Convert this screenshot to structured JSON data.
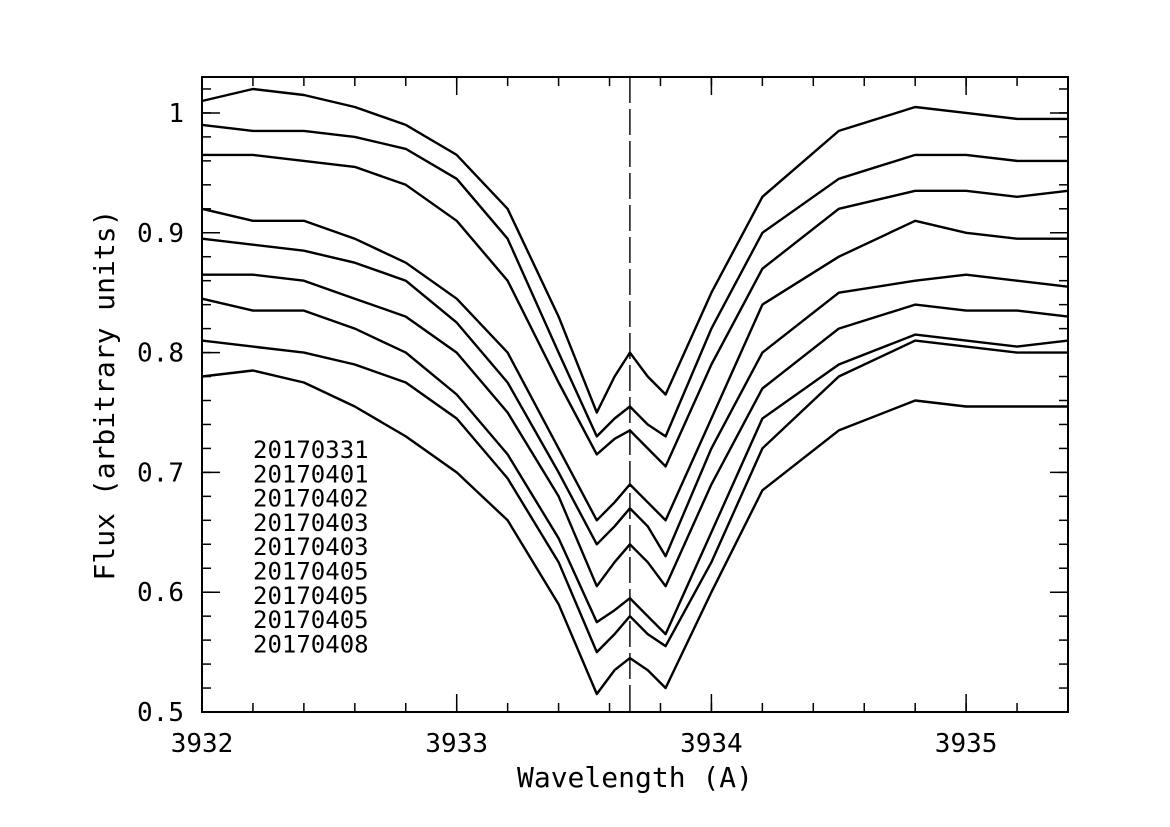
{
  "chart_data": {
    "type": "line",
    "xlabel": "Wavelength (A)",
    "ylabel": "Flux (arbitrary units)",
    "xlim": [
      3932.0,
      3935.4
    ],
    "ylim": [
      0.5,
      1.03
    ],
    "x_ticks": [
      3932,
      3933,
      3934,
      3935
    ],
    "x_tick_labels": [
      "3932",
      "3933",
      "3934",
      "3935"
    ],
    "y_ticks": [
      0.5,
      0.6,
      0.7,
      0.8,
      0.9,
      1.0
    ],
    "y_tick_labels": [
      "0.5",
      "0.6",
      "0.7",
      "0.8",
      "0.9",
      "1"
    ],
    "x_minor_step": 0.2,
    "y_minor_step": 0.02,
    "reference_line_x": 3933.68,
    "legend_entries": [
      "20170331",
      "20170401",
      "20170402",
      "20170403",
      "20170403",
      "20170405",
      "20170405",
      "20170405",
      "20170408"
    ],
    "legend_position": "lower-left",
    "series": [
      {
        "x": [
          3932.0,
          3932.2,
          3932.4,
          3932.6,
          3932.8,
          3933.0,
          3933.2,
          3933.4,
          3933.55,
          3933.62,
          3933.68,
          3933.75,
          3933.82,
          3934.0,
          3934.2,
          3934.5,
          3934.8,
          3935.0,
          3935.2,
          3935.4
        ],
        "y": [
          1.01,
          1.02,
          1.015,
          1.005,
          0.99,
          0.965,
          0.92,
          0.83,
          0.75,
          0.78,
          0.8,
          0.78,
          0.765,
          0.85,
          0.93,
          0.985,
          1.005,
          1.0,
          0.995,
          0.995
        ]
      },
      {
        "x": [
          3932.0,
          3932.2,
          3932.4,
          3932.6,
          3932.8,
          3933.0,
          3933.2,
          3933.4,
          3933.55,
          3933.62,
          3933.68,
          3933.75,
          3933.82,
          3934.0,
          3934.2,
          3934.5,
          3934.8,
          3935.0,
          3935.2,
          3935.4
        ],
        "y": [
          0.99,
          0.985,
          0.985,
          0.98,
          0.97,
          0.945,
          0.895,
          0.8,
          0.73,
          0.745,
          0.755,
          0.74,
          0.73,
          0.82,
          0.9,
          0.945,
          0.965,
          0.965,
          0.96,
          0.96
        ]
      },
      {
        "x": [
          3932.0,
          3932.2,
          3932.4,
          3932.6,
          3932.8,
          3933.0,
          3933.2,
          3933.4,
          3933.55,
          3933.62,
          3933.68,
          3933.75,
          3933.82,
          3934.0,
          3934.2,
          3934.5,
          3934.8,
          3935.0,
          3935.2,
          3935.4
        ],
        "y": [
          0.965,
          0.965,
          0.96,
          0.955,
          0.94,
          0.91,
          0.86,
          0.775,
          0.715,
          0.728,
          0.735,
          0.72,
          0.705,
          0.79,
          0.87,
          0.92,
          0.935,
          0.935,
          0.93,
          0.935
        ]
      },
      {
        "x": [
          3932.0,
          3932.2,
          3932.4,
          3932.6,
          3932.8,
          3933.0,
          3933.2,
          3933.4,
          3933.55,
          3933.62,
          3933.68,
          3933.75,
          3933.82,
          3934.0,
          3934.2,
          3934.5,
          3934.8,
          3935.0,
          3935.2,
          3935.4
        ],
        "y": [
          0.92,
          0.91,
          0.91,
          0.895,
          0.875,
          0.845,
          0.8,
          0.72,
          0.66,
          0.675,
          0.69,
          0.675,
          0.66,
          0.745,
          0.84,
          0.88,
          0.91,
          0.9,
          0.895,
          0.895
        ]
      },
      {
        "x": [
          3932.0,
          3932.2,
          3932.4,
          3932.6,
          3932.8,
          3933.0,
          3933.2,
          3933.4,
          3933.55,
          3933.62,
          3933.68,
          3933.75,
          3933.82,
          3934.0,
          3934.2,
          3934.5,
          3934.8,
          3935.0,
          3935.2,
          3935.4
        ],
        "y": [
          0.895,
          0.89,
          0.885,
          0.875,
          0.86,
          0.825,
          0.775,
          0.7,
          0.64,
          0.655,
          0.67,
          0.655,
          0.63,
          0.72,
          0.8,
          0.85,
          0.86,
          0.865,
          0.86,
          0.855
        ]
      },
      {
        "x": [
          3932.0,
          3932.2,
          3932.4,
          3932.6,
          3932.8,
          3933.0,
          3933.2,
          3933.4,
          3933.55,
          3933.62,
          3933.68,
          3933.75,
          3933.82,
          3934.0,
          3934.2,
          3934.5,
          3934.8,
          3935.0,
          3935.2,
          3935.4
        ],
        "y": [
          0.865,
          0.865,
          0.86,
          0.845,
          0.83,
          0.8,
          0.75,
          0.68,
          0.605,
          0.625,
          0.64,
          0.625,
          0.605,
          0.69,
          0.77,
          0.82,
          0.84,
          0.835,
          0.835,
          0.83
        ]
      },
      {
        "x": [
          3932.0,
          3932.2,
          3932.4,
          3932.6,
          3932.8,
          3933.0,
          3933.2,
          3933.4,
          3933.55,
          3933.62,
          3933.68,
          3933.75,
          3933.82,
          3934.0,
          3934.2,
          3934.5,
          3934.8,
          3935.0,
          3935.2,
          3935.4
        ],
        "y": [
          0.845,
          0.835,
          0.835,
          0.82,
          0.8,
          0.765,
          0.715,
          0.645,
          0.575,
          0.585,
          0.595,
          0.58,
          0.565,
          0.65,
          0.745,
          0.79,
          0.815,
          0.81,
          0.805,
          0.81
        ]
      },
      {
        "x": [
          3932.0,
          3932.2,
          3932.4,
          3932.6,
          3932.8,
          3933.0,
          3933.2,
          3933.4,
          3933.55,
          3933.62,
          3933.68,
          3933.75,
          3933.82,
          3934.0,
          3934.2,
          3934.5,
          3934.8,
          3935.0,
          3935.2,
          3935.4
        ],
        "y": [
          0.81,
          0.805,
          0.8,
          0.79,
          0.775,
          0.745,
          0.695,
          0.625,
          0.55,
          0.565,
          0.58,
          0.565,
          0.555,
          0.625,
          0.72,
          0.78,
          0.81,
          0.805,
          0.8,
          0.8
        ]
      },
      {
        "x": [
          3932.0,
          3932.2,
          3932.4,
          3932.6,
          3932.8,
          3933.0,
          3933.2,
          3933.4,
          3933.55,
          3933.62,
          3933.68,
          3933.75,
          3933.82,
          3934.0,
          3934.2,
          3934.5,
          3934.8,
          3935.0,
          3935.2,
          3935.4
        ],
        "y": [
          0.78,
          0.785,
          0.775,
          0.755,
          0.73,
          0.7,
          0.66,
          0.59,
          0.515,
          0.535,
          0.545,
          0.535,
          0.52,
          0.6,
          0.685,
          0.735,
          0.76,
          0.755,
          0.755,
          0.755
        ]
      }
    ]
  }
}
